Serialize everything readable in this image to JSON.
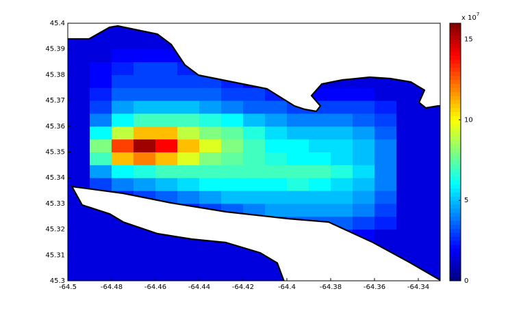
{
  "chart_data": {
    "type": "heatmap",
    "x": [
      -64.495,
      -64.485,
      -64.475,
      -64.465,
      -64.455,
      -64.445,
      -64.435,
      -64.425,
      -64.415,
      -64.405,
      -64.395,
      -64.385,
      -64.375,
      -64.365,
      -64.355,
      -64.345,
      -64.335
    ],
    "y": [
      45.3025,
      45.3075,
      45.3125,
      45.3175,
      45.3225,
      45.3275,
      45.3325,
      45.3375,
      45.3425,
      45.3475,
      45.3525,
      45.3575,
      45.3625,
      45.3675,
      45.3725,
      45.3775,
      45.3825,
      45.3875,
      45.3925,
      45.3975
    ],
    "z": [
      [
        1.5,
        1.5,
        1.5,
        1.5,
        1.5,
        1.5,
        1.5,
        1.5,
        1.5,
        1.5,
        1.5,
        1.5,
        1.5,
        1.5,
        1.5,
        1.5,
        1.5
      ],
      [
        1.5,
        1.5,
        1.5,
        1.5,
        1.5,
        1.5,
        1.5,
        1.5,
        1.5,
        1.5,
        1.5,
        1.5,
        1.5,
        1.5,
        1.5,
        1.5,
        1.5
      ],
      [
        1.5,
        1.5,
        1.5,
        1.5,
        1.5,
        1.5,
        1.5,
        1.5,
        1.5,
        1.5,
        1.5,
        1.5,
        1.5,
        1.5,
        1.5,
        1.5,
        1.5
      ],
      [
        1.5,
        1.5,
        1.5,
        1.5,
        1.5,
        1.5,
        1.5,
        1.5,
        1.5,
        1.5,
        1.5,
        2,
        2.5,
        2,
        1.5,
        1.5,
        1.5
      ],
      [
        1.5,
        1.5,
        1.5,
        1.5,
        1.5,
        1.5,
        1.5,
        2,
        2.5,
        3,
        3.5,
        3.5,
        3.5,
        3,
        2.5,
        1.5,
        1.5
      ],
      [
        1.5,
        1.5,
        1.5,
        1.5,
        2,
        2.5,
        3,
        3.5,
        4,
        4.5,
        4.5,
        4.5,
        4.5,
        4,
        3,
        1.5,
        1.5
      ],
      [
        1.5,
        2,
        2.5,
        3,
        3.5,
        4,
        4.5,
        5,
        5,
        5,
        5,
        5,
        5,
        4.5,
        3.5,
        1.5,
        1.5
      ],
      [
        1.5,
        3,
        4,
        4.5,
        5,
        5.5,
        6,
        6,
        6,
        6,
        6.5,
        6,
        5.5,
        5,
        4,
        1.5,
        1.5
      ],
      [
        1.5,
        4.5,
        6,
        6.5,
        7,
        7,
        7,
        7,
        7,
        7,
        7,
        7,
        6.5,
        5.5,
        4,
        1.5,
        1.5
      ],
      [
        1.5,
        7,
        11,
        12,
        11,
        9.5,
        8,
        7.5,
        7,
        6.5,
        6,
        6,
        5.5,
        5,
        4,
        1.5,
        1.5
      ],
      [
        1.5,
        8,
        13,
        15.5,
        14,
        11,
        9.5,
        8,
        7,
        6,
        6,
        5.5,
        5.5,
        5,
        4,
        1.5,
        1.5
      ],
      [
        1.5,
        6,
        9,
        11,
        11,
        9,
        8,
        7.5,
        6.5,
        5.5,
        5,
        5,
        5,
        4.5,
        3.5,
        1.5,
        1.5
      ],
      [
        1.5,
        4,
        6,
        7,
        7,
        7,
        6.5,
        6,
        5,
        4.5,
        4,
        4,
        4,
        3.5,
        3,
        1.5,
        1.5
      ],
      [
        1.5,
        3,
        4.5,
        5,
        5,
        5,
        4.5,
        4,
        3.5,
        3.5,
        3,
        3,
        3,
        3,
        2.5,
        1.5,
        1.5
      ],
      [
        1.5,
        2.5,
        3.5,
        3.5,
        3.5,
        3.5,
        3.5,
        3,
        3,
        2.5,
        2.5,
        2,
        2,
        2,
        1.5,
        1.5,
        1.5
      ],
      [
        1.5,
        2,
        3,
        3,
        3,
        3,
        3,
        2.5,
        2,
        1.5,
        1.5,
        1.5,
        1.5,
        1.5,
        1.5,
        1.5,
        1.5
      ],
      [
        1.5,
        2,
        2.5,
        3,
        3,
        2.5,
        2,
        2,
        1.5,
        1.5,
        1.5,
        1.5,
        1.5,
        1.5,
        1.5,
        1.5,
        1.5
      ],
      [
        1.5,
        1.5,
        2,
        2,
        2,
        2,
        1.5,
        1.5,
        1.5,
        1.5,
        1.5,
        1.5,
        1.5,
        1.5,
        1.5,
        1.5,
        1.5
      ],
      [
        1.5,
        1.5,
        1.5,
        1.5,
        1.5,
        1.5,
        1.5,
        1.5,
        1.5,
        1.5,
        1.5,
        1.5,
        1.5,
        1.5,
        1.5,
        1.5,
        1.5
      ],
      [
        1.5,
        1.5,
        1.5,
        1.5,
        1.5,
        1.5,
        1.5,
        1.5,
        1.5,
        1.5,
        1.5,
        1.5,
        1.5,
        1.5,
        1.5,
        1.5,
        1.5
      ]
    ],
    "xlim": [
      -64.5,
      -64.33
    ],
    "xticks": [
      -64.5,
      -64.48,
      -64.46,
      -64.44,
      -64.42,
      -64.4,
      -64.38,
      -64.36,
      -64.34
    ],
    "ylim": [
      45.3,
      45.4
    ],
    "yticks": [
      45.3,
      45.31,
      45.32,
      45.33,
      45.34,
      45.35,
      45.36,
      45.37,
      45.38,
      45.39,
      45.4
    ],
    "colormap": "jet",
    "colorbar": {
      "lim": [
        0,
        16
      ],
      "ticks": [
        0,
        5,
        10,
        15
      ],
      "multiplier": "x 10",
      "exponent": "7"
    }
  }
}
